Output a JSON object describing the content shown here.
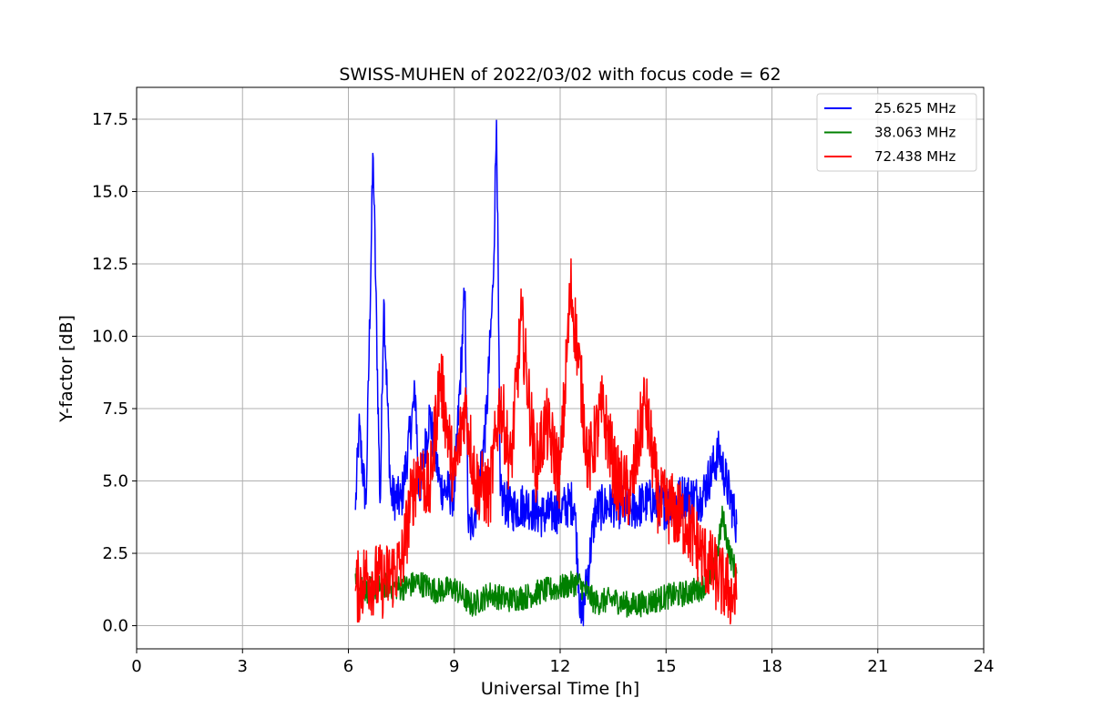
{
  "chart_data": {
    "type": "line",
    "title": "SWISS-MUHEN of 2022/03/02 with focus code = 62",
    "xlabel": "Universal Time [h]",
    "ylabel": "Y-factor [dB]",
    "xlim": [
      0,
      24
    ],
    "ylim": [
      -0.8,
      18.6
    ],
    "xticks": [
      0,
      3,
      6,
      9,
      12,
      15,
      18,
      21,
      24
    ],
    "xtick_labels": [
      "0",
      "3",
      "6",
      "9",
      "12",
      "15",
      "18",
      "21",
      "24"
    ],
    "yticks": [
      0,
      2.5,
      5,
      7.5,
      10,
      12.5,
      15,
      17.5
    ],
    "ytick_labels": [
      "0.0",
      "2.5",
      "5.0",
      "7.5",
      "10.0",
      "12.5",
      "15.0",
      "17.5"
    ],
    "grid": true,
    "legend_position": "top-right",
    "x_range": [
      6.2,
      17.0
    ],
    "series": [
      {
        "name": "25.625 MHz",
        "color": "#0000ff",
        "x": [
          6.2,
          6.3,
          6.5,
          6.7,
          6.9,
          7.0,
          7.2,
          7.5,
          7.9,
          8.0,
          8.3,
          8.6,
          9.0,
          9.3,
          9.4,
          9.6,
          9.9,
          10.1,
          10.2,
          10.3,
          10.6,
          11.0,
          11.5,
          12.0,
          12.4,
          12.6,
          13.0,
          13.5,
          14.0,
          14.5,
          15.0,
          15.5,
          16.0,
          16.5,
          17.0
        ],
        "y": [
          4.0,
          6.8,
          4.2,
          16.4,
          4.0,
          11.4,
          4.5,
          4.3,
          8.1,
          4.5,
          7.3,
          4.8,
          4.5,
          11.6,
          3.2,
          4.0,
          7.0,
          11.7,
          17.7,
          4.5,
          4.0,
          4.2,
          3.8,
          4.0,
          4.3,
          0.0,
          4.0,
          4.2,
          4.0,
          4.3,
          4.1,
          4.5,
          4.4,
          6.0,
          3.5
        ]
      },
      {
        "name": "38.063 MHz",
        "color": "#008000",
        "x": [
          6.2,
          6.5,
          7.0,
          7.5,
          8.0,
          8.5,
          9.0,
          9.5,
          10.0,
          10.5,
          11.0,
          11.5,
          12.0,
          12.5,
          13.0,
          13.5,
          14.0,
          14.5,
          15.0,
          15.5,
          16.0,
          16.4,
          16.6,
          16.8,
          17.0
        ],
        "y": [
          1.8,
          1.2,
          1.4,
          1.3,
          1.5,
          1.2,
          1.3,
          0.7,
          1.1,
          0.9,
          1.0,
          1.2,
          1.3,
          1.5,
          0.8,
          0.9,
          0.7,
          0.8,
          1.0,
          1.1,
          1.3,
          2.0,
          3.8,
          2.5,
          1.8
        ]
      },
      {
        "name": "72.438 MHz",
        "color": "#ff0000",
        "x": [
          6.2,
          6.5,
          7.0,
          7.5,
          7.8,
          8.0,
          8.3,
          8.6,
          9.0,
          9.3,
          9.6,
          10.0,
          10.3,
          10.6,
          10.9,
          11.3,
          11.6,
          12.0,
          12.3,
          12.5,
          12.8,
          13.2,
          13.6,
          14.0,
          14.4,
          14.8,
          15.2,
          15.6,
          16.0,
          16.5,
          16.8,
          17.0
        ],
        "y": [
          1.2,
          1.7,
          1.5,
          2.1,
          4.5,
          5.5,
          4.6,
          8.7,
          5.0,
          7.7,
          5.0,
          4.5,
          7.8,
          5.5,
          10.6,
          5.5,
          7.0,
          5.2,
          11.7,
          9.5,
          5.5,
          7.5,
          5.0,
          4.5,
          7.8,
          4.2,
          4.0,
          3.5,
          2.5,
          1.6,
          1.2,
          0.9
        ]
      }
    ]
  }
}
